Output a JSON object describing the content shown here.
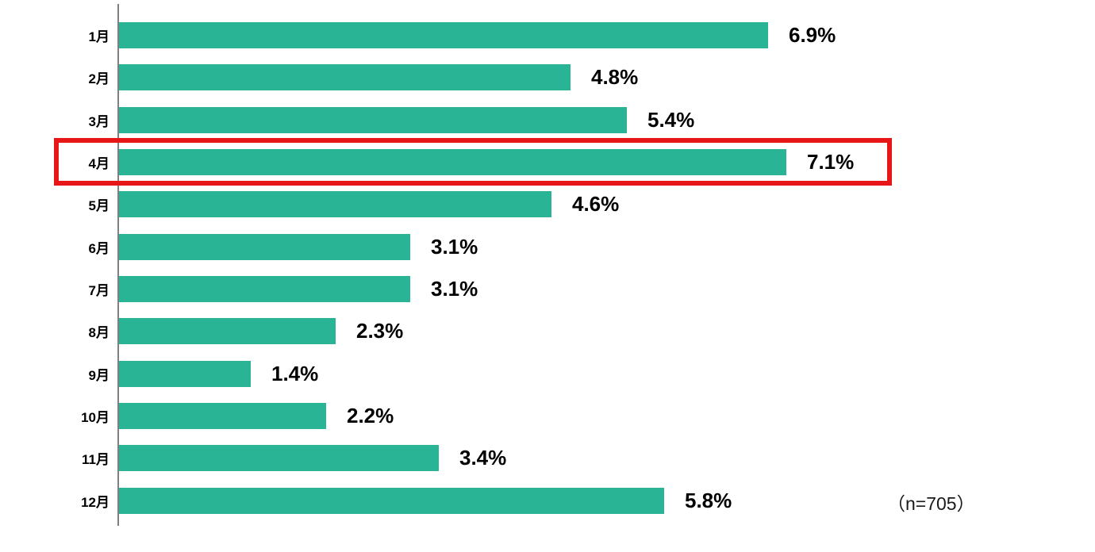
{
  "chart_data": {
    "type": "bar",
    "orientation": "horizontal",
    "title": "",
    "xlabel": "",
    "ylabel": "",
    "categories": [
      "1月",
      "2月",
      "3月",
      "4月",
      "5月",
      "6月",
      "7月",
      "8月",
      "9月",
      "10月",
      "11月",
      "12月"
    ],
    "values": [
      6.9,
      4.8,
      5.4,
      7.1,
      4.6,
      3.1,
      3.1,
      2.3,
      1.4,
      2.2,
      3.4,
      5.8
    ],
    "value_labels": [
      "6.9%",
      "4.8%",
      "5.4%",
      "7.1%",
      "4.6%",
      "3.1%",
      "3.1%",
      "2.3%",
      "1.4%",
      "2.2%",
      "3.4%",
      "5.8%"
    ],
    "unit": "%",
    "xlim": [
      0,
      8
    ],
    "grid": false,
    "legend": null,
    "highlight": {
      "category": "4月",
      "index": 3,
      "value": 7.1,
      "style": "red-outline-box"
    },
    "annotation": "（n=705）",
    "colors": {
      "bar": "#2ab496",
      "highlight_border": "#e81717",
      "axis": "#808080",
      "text": "#000000"
    }
  },
  "footer": {
    "sample_note": "（n=705）"
  }
}
